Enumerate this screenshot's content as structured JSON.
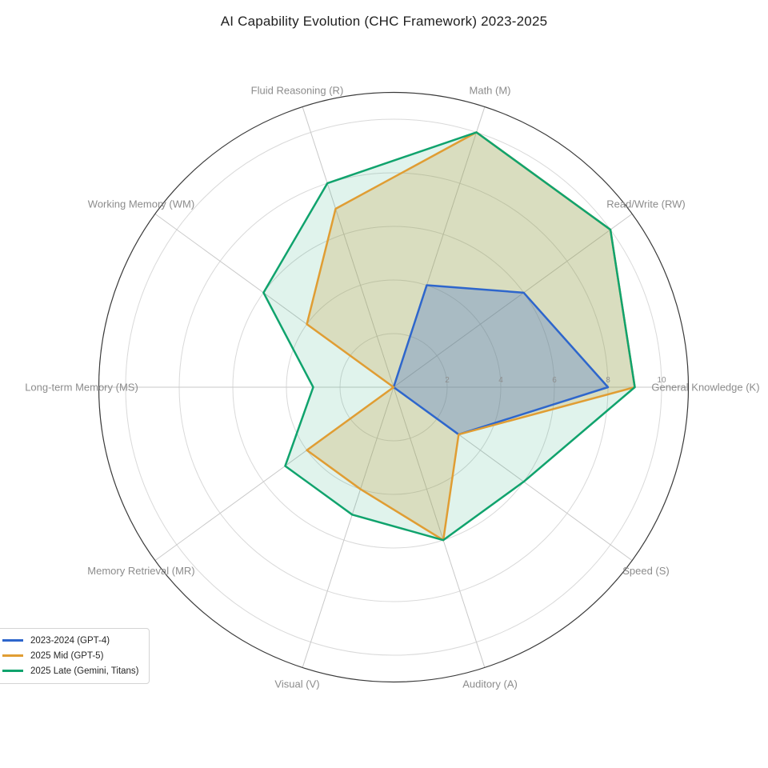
{
  "chart_data": {
    "type": "radar",
    "title": "AI Capability Evolution (CHC Framework) 2023-2025",
    "categories": [
      "General Knowledge (K)",
      "Read/Write (RW)",
      "Math (M)",
      "Fluid Reasoning (R)",
      "Working Memory (WM)",
      "Long-term Memory (MS)",
      "Memory Retrieval (MR)",
      "Visual (V)",
      "Auditory (A)",
      "Speed (S)"
    ],
    "series": [
      {
        "name": "2023-2024 (GPT-4)",
        "color": "#2e66cc",
        "values": [
          8,
          6,
          4,
          0,
          0,
          0,
          0,
          0,
          0,
          3
        ]
      },
      {
        "name": "2025 Mid (GPT-5)",
        "color": "#e09d33",
        "values": [
          9,
          10,
          10,
          7,
          4,
          0,
          4,
          4,
          6,
          3
        ]
      },
      {
        "name": "2025 Late (Gemini, Titans)",
        "color": "#10a36d",
        "values": [
          9,
          10,
          10,
          8,
          6,
          3,
          5,
          5,
          6,
          6
        ]
      }
    ],
    "r_ticks": [
      2,
      4,
      6,
      8,
      10
    ],
    "r_axis_max": 11,
    "angle_start_deg": 0,
    "direction": "counterclockwise",
    "grid": true,
    "legend_position": "lower left",
    "style": {
      "grid_color": "#d9d9d9",
      "spoke_color": "#c9c9c9",
      "spine_color": "#3a3a3a",
      "tick_label_color": "#8f8f8f",
      "axis_label_color": "#8c8c8c",
      "title_color": "#1e1e1e"
    }
  }
}
